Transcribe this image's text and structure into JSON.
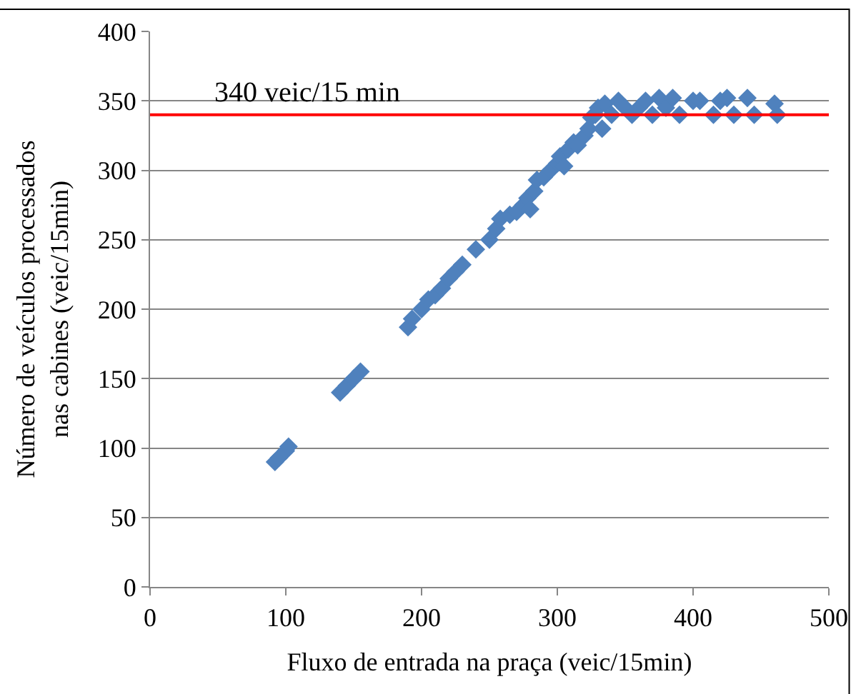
{
  "chart_data": {
    "type": "scatter",
    "xlabel": "Fluxo de entrada na praça (veic/15min)",
    "ylabel": "Número de veículos processados\nnas cabines (veic/15min)",
    "x": [
      92,
      95,
      100,
      102,
      140,
      145,
      150,
      155,
      190,
      193,
      200,
      205,
      210,
      215,
      220,
      225,
      230,
      240,
      250,
      255,
      258,
      265,
      270,
      275,
      278,
      280,
      283,
      285,
      290,
      295,
      300,
      302,
      305,
      308,
      312,
      315,
      320,
      323,
      325,
      328,
      330,
      333,
      335,
      340,
      345,
      350,
      355,
      360,
      365,
      370,
      375,
      380,
      385,
      390,
      400,
      405,
      415,
      420,
      425,
      430,
      440,
      445,
      460,
      462
    ],
    "series": [
      {
        "color": "#4f81bd",
        "values": [
          90,
          93,
          98,
          101,
          140,
          145,
          150,
          155,
          187,
          193,
          200,
          207,
          210,
          215,
          222,
          227,
          232,
          243,
          250,
          258,
          265,
          268,
          270,
          275,
          280,
          272,
          285,
          293,
          295,
          300,
          305,
          310,
          303,
          315,
          320,
          318,
          325,
          330,
          338,
          340,
          345,
          330,
          348,
          340,
          350,
          345,
          340,
          345,
          350,
          340,
          352,
          345,
          352,
          340,
          350,
          350,
          340,
          350,
          352,
          340,
          352,
          340,
          348,
          340
        ]
      }
    ],
    "marker": "diamond",
    "xlim": [
      0,
      500
    ],
    "xticks": [
      0,
      100,
      200,
      300,
      400,
      500
    ],
    "ylim": [
      0,
      400
    ],
    "yticks": [
      0,
      50,
      100,
      150,
      200,
      250,
      300,
      350,
      400
    ],
    "grid": "y",
    "legend": false,
    "ref_lines": [
      {
        "axis": "y",
        "value": 340,
        "color": "#ff0000",
        "line_style": "solid",
        "label": "340 veic/15 min"
      }
    ]
  }
}
